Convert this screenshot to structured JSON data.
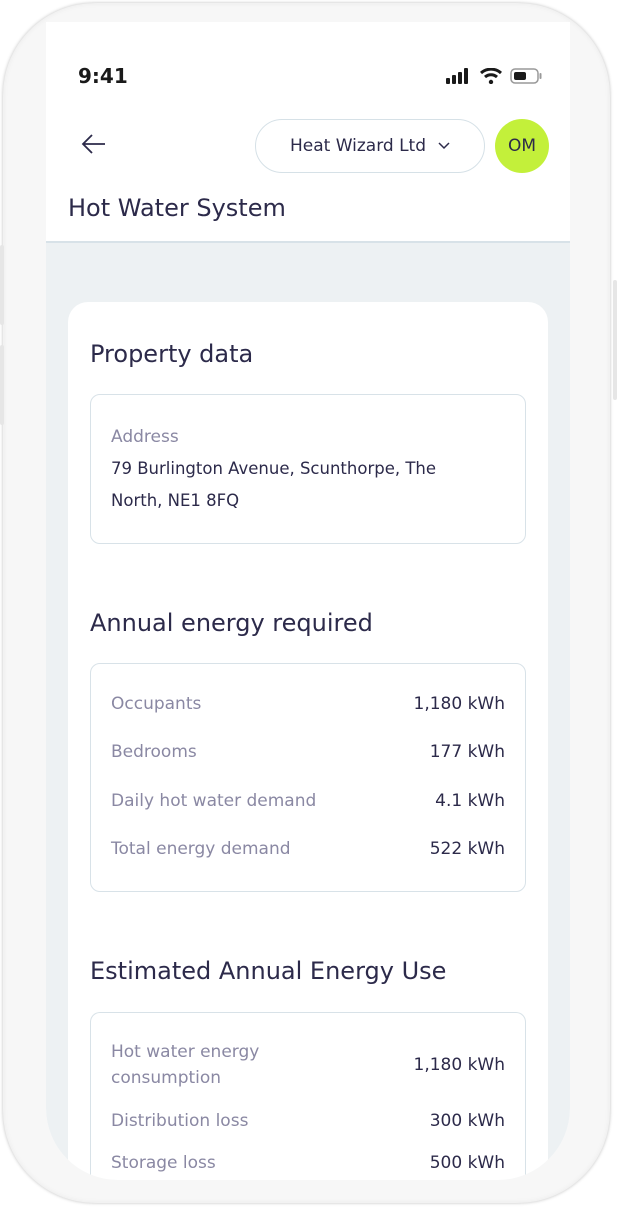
{
  "status_bar": {
    "time": "9:41",
    "icons": [
      "signal-icon",
      "wifi-icon",
      "battery-icon"
    ]
  },
  "header": {
    "back_icon": "arrow-left-icon",
    "company": "Heat Wizard Ltd",
    "avatar_initials": "OM",
    "avatar_color": "#c3f03a"
  },
  "page_title": "Hot Water System",
  "property": {
    "heading": "Property data",
    "address_label": "Address",
    "address_line1": "79 Burlington Avenue, Scunthorpe, The",
    "address_line2": "North, NE1 8FQ"
  },
  "annual": {
    "heading": "Annual energy required",
    "rows": [
      {
        "label": "Occupants",
        "value": "1,180 kWh"
      },
      {
        "label": "Bedrooms",
        "value": "177 kWh"
      },
      {
        "label": "Daily hot water demand",
        "value": "4.1 kWh"
      },
      {
        "label": "Total energy demand",
        "value": "522 kWh"
      }
    ]
  },
  "estimated": {
    "heading": "Estimated Annual Energy Use",
    "rows": [
      {
        "label_line1": "Hot water energy",
        "label_line2": "consumption",
        "value": "1,180 kWh"
      },
      {
        "label": "Distribution loss",
        "value": "300 kWh"
      },
      {
        "label": "Storage loss",
        "value": "500 kWh"
      }
    ]
  }
}
